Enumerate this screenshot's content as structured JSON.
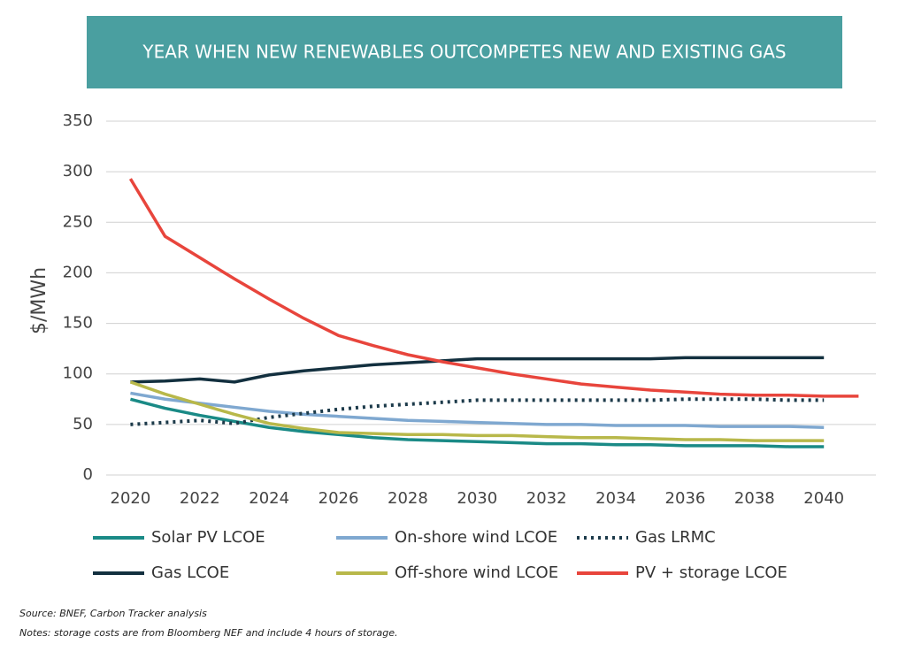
{
  "chart_data": {
    "type": "line",
    "title": "YEAR WHEN NEW RENEWABLES OUTCOMPETES NEW AND EXISTING GAS",
    "y_label": "$/MWh",
    "x": [
      2020,
      2021,
      2022,
      2023,
      2024,
      2025,
      2026,
      2027,
      2028,
      2029,
      2030,
      2031,
      2032,
      2033,
      2034,
      2035,
      2036,
      2037,
      2038,
      2039,
      2040,
      2041
    ],
    "xlim": [
      2019.3,
      2041.5
    ],
    "xticks": [
      2020,
      2022,
      2024,
      2026,
      2028,
      2030,
      2032,
      2034,
      2036,
      2038,
      2040
    ],
    "ylim": [
      0,
      350
    ],
    "yticks": [
      0,
      50,
      100,
      150,
      200,
      250,
      300,
      350
    ],
    "grid": true,
    "series": [
      {
        "name": "Solar PV LCOE",
        "color": "#1a8a86",
        "values": [
          75,
          66,
          59,
          53,
          47,
          43,
          40,
          37,
          35,
          34,
          33,
          32,
          31,
          31,
          30,
          30,
          29,
          29,
          29,
          28,
          28,
          null
        ]
      },
      {
        "name": "On-shore wind LCOE",
        "color": "#7fa8d0",
        "values": [
          81,
          75,
          71,
          67,
          63,
          60,
          58,
          56,
          54,
          53,
          52,
          51,
          50,
          50,
          49,
          49,
          49,
          48,
          48,
          48,
          47,
          null
        ]
      },
      {
        "name": "Gas LRMC",
        "color": "#1c3a4a",
        "line_style": "dotted",
        "values": [
          50,
          52,
          54,
          51,
          57,
          61,
          65,
          68,
          70,
          72,
          74,
          74,
          74,
          74,
          74,
          74,
          75,
          75,
          75,
          74,
          74,
          null
        ]
      },
      {
        "name": "Gas LCOE",
        "color": "#13303f",
        "values": [
          92,
          93,
          95,
          92,
          99,
          103,
          106,
          109,
          111,
          113,
          115,
          115,
          115,
          115,
          115,
          115,
          116,
          116,
          116,
          116,
          116,
          null
        ]
      },
      {
        "name": "Off-shore wind LCOE",
        "color": "#b8b84a",
        "values": [
          92,
          80,
          70,
          60,
          51,
          46,
          42,
          41,
          40,
          40,
          39,
          39,
          38,
          37,
          37,
          36,
          35,
          35,
          34,
          34,
          34,
          null
        ]
      },
      {
        "name": "PV + storage LCOE",
        "color": "#e8453c",
        "values": [
          293,
          236,
          215,
          194,
          174,
          155,
          138,
          128,
          119,
          112,
          106,
          100,
          95,
          90,
          87,
          84,
          82,
          80,
          79,
          79,
          78,
          78
        ]
      }
    ]
  },
  "footnotes": [
    "Source: BNEF, Carbon Tracker analysis",
    "Notes: storage costs are from Bloomberg NEF and include 4 hours of storage."
  ]
}
